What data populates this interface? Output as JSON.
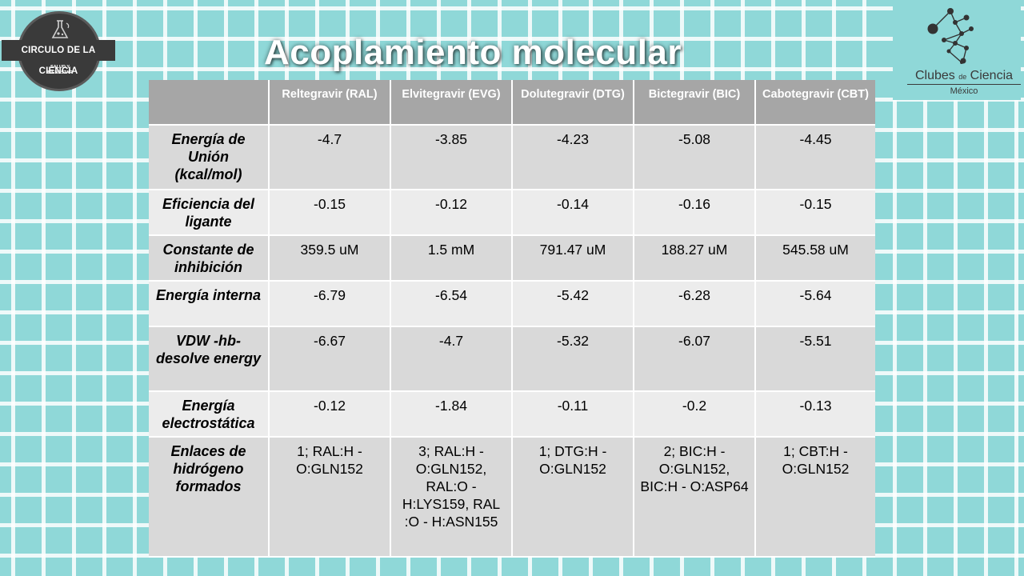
{
  "logo_left": {
    "name": "CIRCULO DE LA CIENCIA",
    "sub": "SALUD Y BIENESTAR"
  },
  "title": "Acoplamiento molecular",
  "logo_right": {
    "name_part1": "Clubes ",
    "name_part2": "de",
    "name_part3": " Ciencia",
    "country": "México"
  },
  "table": {
    "headers": [
      "",
      "Reltegravir (RAL)",
      "Elvitegravir (EVG)",
      "Dolutegravir (DTG)",
      "Bictegravir (BIC)",
      "Cabotegravir (CBT)"
    ],
    "rows": [
      {
        "label": "Energía de Unión (kcal/mol)",
        "values": [
          "-4.7",
          "-3.85",
          "-4.23",
          "-5.08",
          "-4.45"
        ]
      },
      {
        "label": "Eficiencia del ligante",
        "values": [
          "-0.15",
          "-0.12",
          "-0.14",
          "-0.16",
          "-0.15"
        ]
      },
      {
        "label": "Constante de inhibición",
        "values": [
          "359.5 uM",
          "1.5 mM",
          "791.47 uM",
          "188.27 uM",
          "545.58 uM"
        ]
      },
      {
        "label": "Energía interna",
        "values": [
          "-6.79",
          "-6.54",
          "-5.42",
          "-6.28",
          "-5.64"
        ]
      },
      {
        "label": "VDW -hb-desolve energy",
        "values": [
          "-6.67",
          "-4.7",
          "-5.32",
          "-6.07",
          "-5.51"
        ]
      },
      {
        "label": "Energía electrostática",
        "values": [
          "-0.12",
          "-1.84",
          "-0.11",
          "-0.2",
          "-0.13"
        ]
      },
      {
        "label": "Enlaces de hidrógeno formados",
        "values": [
          "1; RAL:H - O:GLN152",
          "3; RAL:H - O:GLN152, RAL:O - H:LYS159,  RAL :O - H:ASN155",
          "1; DTG:H - O:GLN152",
          "2; BIC:H - O:GLN152, BIC:H - O:ASP64",
          "1; CBT:H - O:GLN152"
        ]
      }
    ]
  }
}
